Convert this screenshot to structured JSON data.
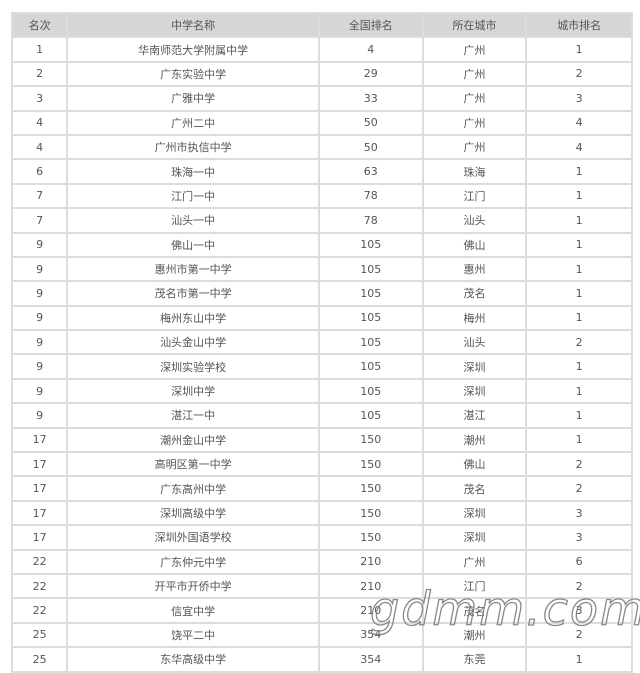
{
  "table": {
    "headers": [
      "名次",
      "中学名称",
      "全国排名",
      "所在城市",
      "城市排名"
    ],
    "rows": [
      [
        "1",
        "华南师范大学附属中学",
        "4",
        "广州",
        "1"
      ],
      [
        "2",
        "广东实验中学",
        "29",
        "广州",
        "2"
      ],
      [
        "3",
        "广雅中学",
        "33",
        "广州",
        "3"
      ],
      [
        "4",
        "广州二中",
        "50",
        "广州",
        "4"
      ],
      [
        "4",
        "广州市执信中学",
        "50",
        "广州",
        "4"
      ],
      [
        "6",
        "珠海一中",
        "63",
        "珠海",
        "1"
      ],
      [
        "7",
        "江门一中",
        "78",
        "江门",
        "1"
      ],
      [
        "7",
        "汕头一中",
        "78",
        "汕头",
        "1"
      ],
      [
        "9",
        "佛山一中",
        "105",
        "佛山",
        "1"
      ],
      [
        "9",
        "惠州市第一中学",
        "105",
        "惠州",
        "1"
      ],
      [
        "9",
        "茂名市第一中学",
        "105",
        "茂名",
        "1"
      ],
      [
        "9",
        "梅州东山中学",
        "105",
        "梅州",
        "1"
      ],
      [
        "9",
        "汕头金山中学",
        "105",
        "汕头",
        "2"
      ],
      [
        "9",
        "深圳实验学校",
        "105",
        "深圳",
        "1"
      ],
      [
        "9",
        "深圳中学",
        "105",
        "深圳",
        "1"
      ],
      [
        "9",
        "湛江一中",
        "105",
        "湛江",
        "1"
      ],
      [
        "17",
        "潮州金山中学",
        "150",
        "潮州",
        "1"
      ],
      [
        "17",
        "高明区第一中学",
        "150",
        "佛山",
        "2"
      ],
      [
        "17",
        "广东高州中学",
        "150",
        "茂名",
        "2"
      ],
      [
        "17",
        "深圳高级中学",
        "150",
        "深圳",
        "3"
      ],
      [
        "17",
        "深圳外国语学校",
        "150",
        "深圳",
        "3"
      ],
      [
        "22",
        "广东仲元中学",
        "210",
        "广州",
        "6"
      ],
      [
        "22",
        "开平市开侨中学",
        "210",
        "江门",
        "2"
      ],
      [
        "22",
        "信宜中学",
        "210",
        "茂名",
        "3"
      ],
      [
        "25",
        "饶平二中",
        "354",
        "潮州",
        "2"
      ],
      [
        "25",
        "东华高级中学",
        "354",
        "东莞",
        "1"
      ]
    ]
  },
  "watermark": "gdmm.com"
}
